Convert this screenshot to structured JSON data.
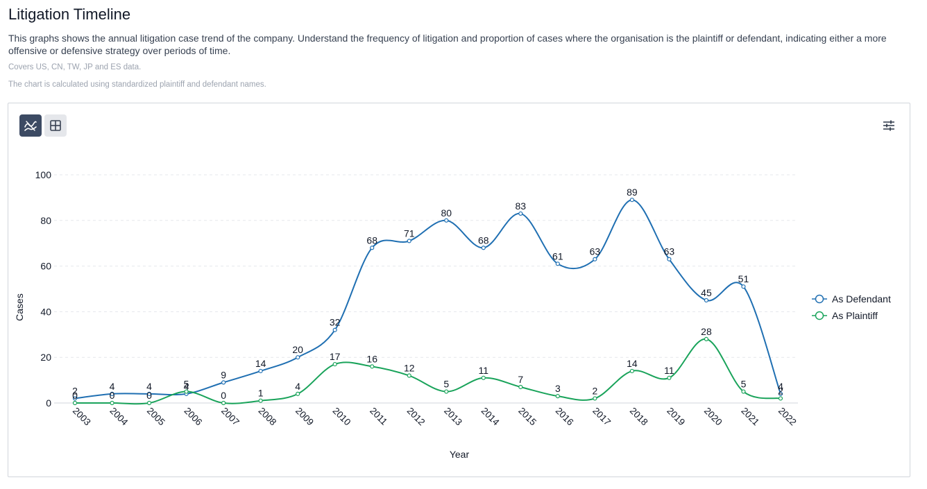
{
  "page": {
    "title": "Litigation Timeline",
    "description": "This graphs shows the annual litigation case trend of the company. Understand the frequency of litigation and proportion of cases where the organisation is the plaintiff or defendant, indicating either a more offensive or defensive strategy over periods of time.",
    "note_coverage": "Covers US, CN, TW, JP and ES data.",
    "note_method": "The chart is calculated using standardized plaintiff and defendant names."
  },
  "toolbar": {
    "chart_view_icon": "line-chart-icon",
    "table_view_icon": "table-grid-icon",
    "settings_icon": "sliders-icon"
  },
  "colors": {
    "defendant": "#1f6fb2",
    "plaintiff": "#19a35a",
    "active_button": "#3c4a63",
    "inactive_button": "#e5e7eb"
  },
  "chart_data": {
    "type": "line",
    "xlabel": "Year",
    "ylabel": "Cases",
    "ylim": [
      0,
      100
    ],
    "yticks": [
      0,
      20,
      40,
      60,
      80,
      100
    ],
    "grid": true,
    "legend_position": "right",
    "smooth": true,
    "x": [
      "2003",
      "2004",
      "2005",
      "2006",
      "2007",
      "2008",
      "2009",
      "2010",
      "2011",
      "2012",
      "2013",
      "2014",
      "2015",
      "2016",
      "2017",
      "2018",
      "2019",
      "2020",
      "2021",
      "2022"
    ],
    "series": [
      {
        "name": "As Defendant",
        "color": "#1f6fb2",
        "values": [
          2,
          4,
          4,
          4,
          9,
          14,
          20,
          32,
          68,
          71,
          80,
          68,
          83,
          61,
          63,
          89,
          63,
          45,
          51,
          4
        ]
      },
      {
        "name": "As Plaintiff",
        "color": "#19a35a",
        "values": [
          0,
          0,
          0,
          5,
          0,
          1,
          4,
          17,
          16,
          12,
          5,
          11,
          7,
          3,
          2,
          14,
          11,
          28,
          5,
          2
        ]
      }
    ]
  }
}
